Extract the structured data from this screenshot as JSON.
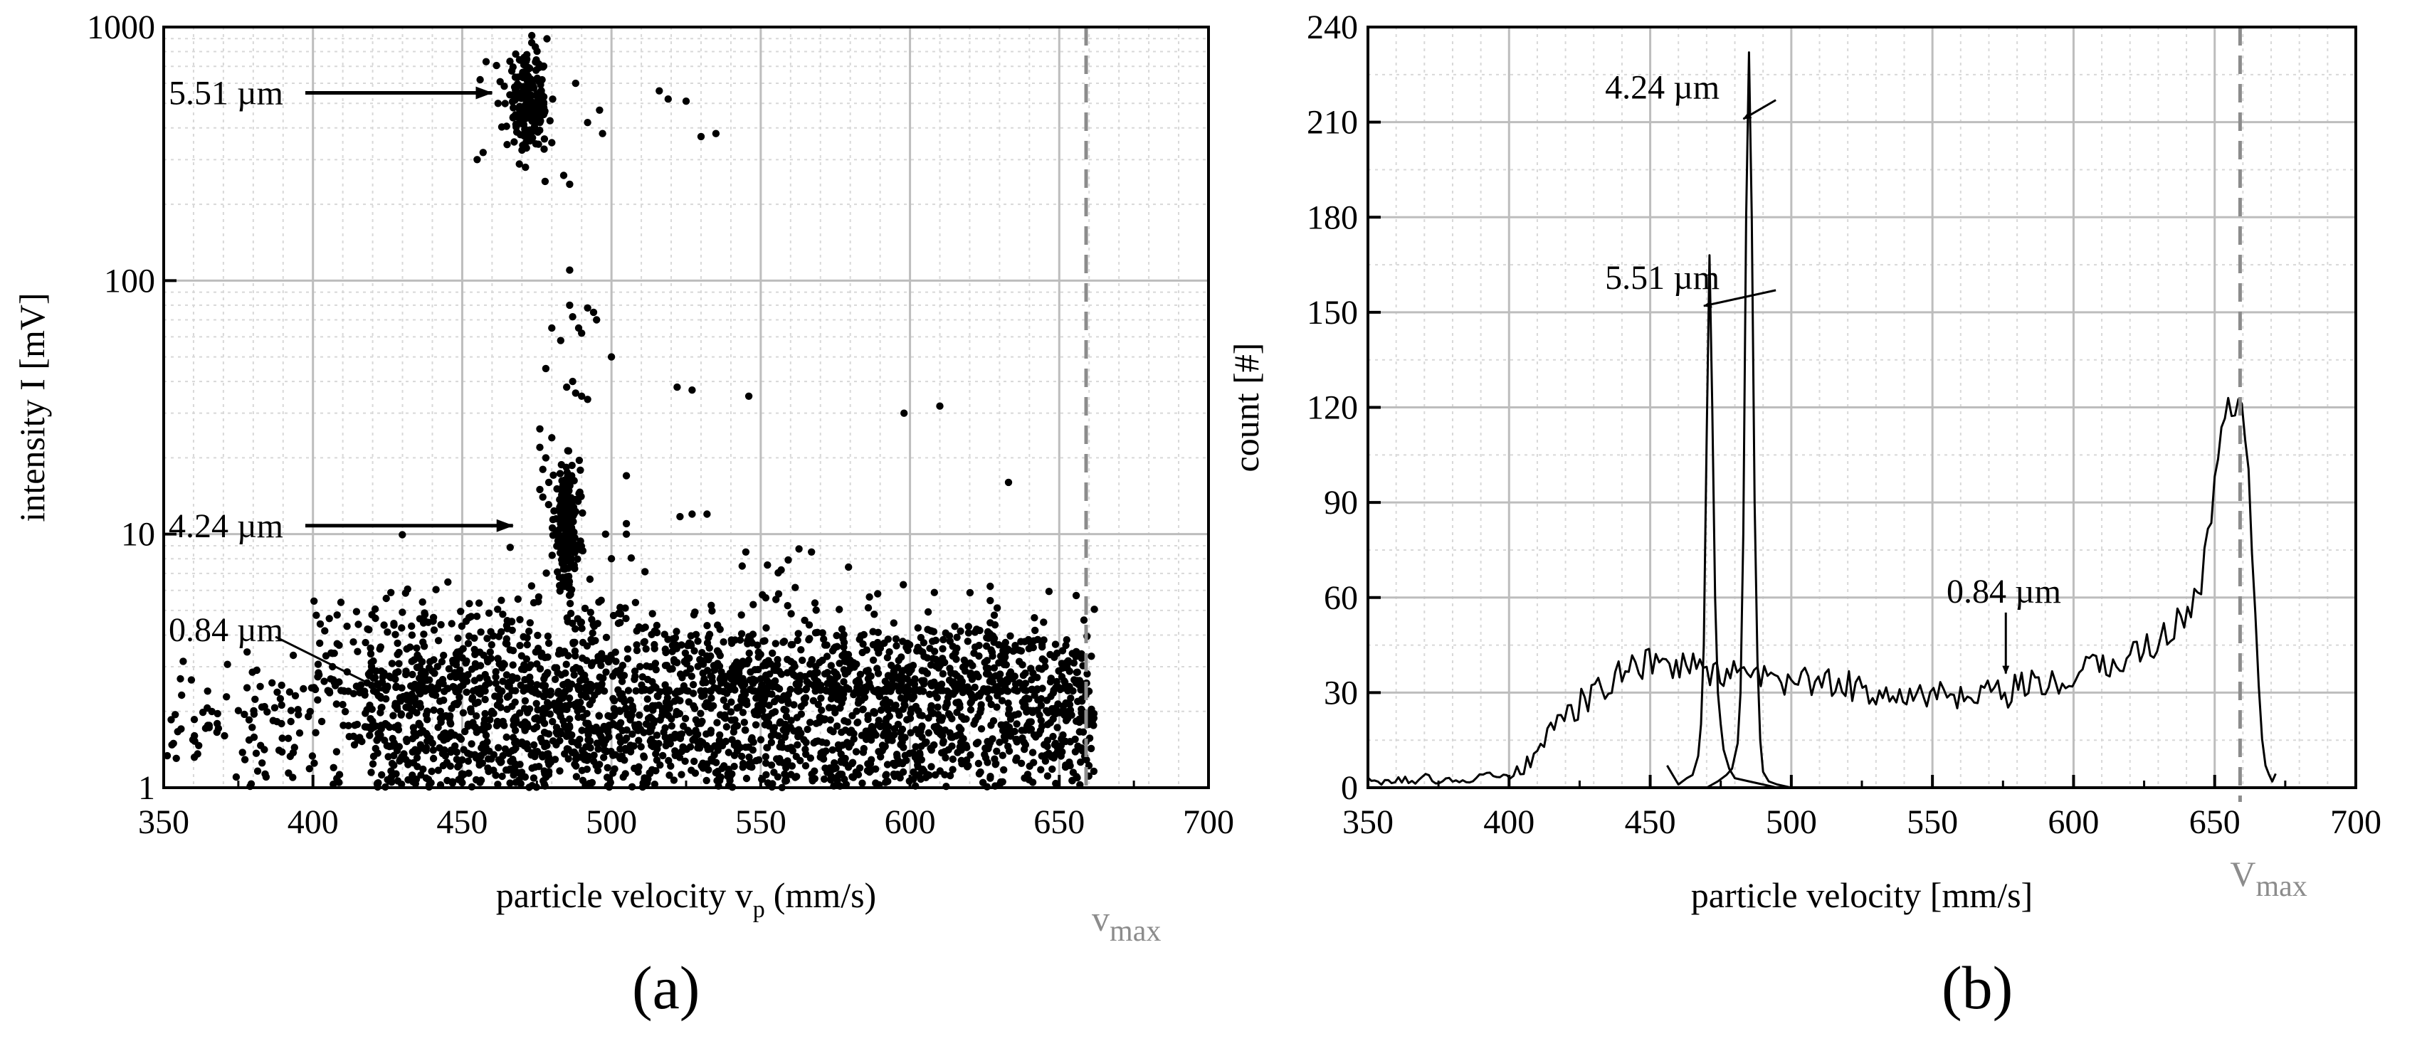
{
  "chart_data": [
    {
      "panel": "(a)",
      "type": "scatter",
      "xlabel": "particle velocity v",
      "xlabel_sub": "p",
      "xlabel_unit": "(mm/s)",
      "ylabel": "intensity I [mV]",
      "xlim": [
        350,
        700
      ],
      "ylim": [
        1,
        1000
      ],
      "yscale": "log",
      "xticks": [
        "350",
        "400",
        "450",
        "500",
        "550",
        "600",
        "650",
        "700"
      ],
      "yticks": [
        "1",
        "10",
        "100",
        "1000"
      ],
      "grid": true,
      "vmax": {
        "x": 659,
        "label": "v",
        "label_sub": "max",
        "color": "#8c8c8c"
      },
      "annotations": [
        {
          "text": "5.51 µm",
          "x": 350,
          "y": 550,
          "arrow_to": [
            460,
            550
          ]
        },
        {
          "text": "4.24 µm",
          "x": 350,
          "y": 10.8,
          "arrow_to": [
            467,
            10.8
          ]
        },
        {
          "text": "0.84 µm",
          "x": 350,
          "y": 4.2,
          "arrow_to": [
            424,
            2.4
          ]
        }
      ],
      "clusters": [
        {
          "name": "0.84 µm band",
          "x_range": [
            418,
            662
          ],
          "y_median": 1.75,
          "y_spread": 0.22,
          "n": 2600
        },
        {
          "name": "0.84 µm low tail",
          "x_range": [
            350,
            420
          ],
          "y_median": 1.75,
          "y_spread": 0.12,
          "n": 140
        },
        {
          "name": "outliers above band",
          "x_range": [
            400,
            660
          ],
          "y_median": 3.0,
          "y_spread": 0.35,
          "n": 520
        },
        {
          "name": "4.24 µm cluster",
          "x_center": 485,
          "x_spread": 2.2,
          "y_median": 10.5,
          "y_spread": 0.12,
          "n": 230
        },
        {
          "name": "5.51 µm cluster",
          "x_center": 472,
          "x_spread": 3.5,
          "y_median": 500,
          "y_spread": 0.09,
          "n": 200
        }
      ],
      "points": [
        [
          456,
          620
        ],
        [
          458,
          730
        ],
        [
          455,
          300
        ],
        [
          457,
          320
        ],
        [
          462,
          500
        ],
        [
          476,
          420
        ],
        [
          480,
          350
        ],
        [
          484,
          260
        ],
        [
          486,
          240
        ],
        [
          488,
          600
        ],
        [
          492,
          420
        ],
        [
          496,
          470
        ],
        [
          497,
          380
        ],
        [
          516,
          560
        ],
        [
          519,
          520
        ],
        [
          525,
          510
        ],
        [
          530,
          370
        ],
        [
          535,
          380
        ],
        [
          486,
          110
        ],
        [
          486,
          80
        ],
        [
          487,
          72
        ],
        [
          489,
          65
        ],
        [
          492,
          78
        ],
        [
          494,
          75
        ],
        [
          495,
          70
        ],
        [
          490,
          62
        ],
        [
          480,
          65
        ],
        [
          483,
          58
        ],
        [
          487,
          40
        ],
        [
          488,
          36
        ],
        [
          490,
          35
        ],
        [
          492,
          34
        ],
        [
          485,
          38
        ],
        [
          478,
          45
        ],
        [
          500,
          50
        ],
        [
          522,
          38
        ],
        [
          527,
          37
        ],
        [
          546,
          35
        ],
        [
          598,
          30
        ],
        [
          610,
          32
        ],
        [
          633,
          16
        ],
        [
          527,
          12
        ],
        [
          505,
          17
        ],
        [
          505,
          11
        ],
        [
          505,
          10
        ],
        [
          532,
          12
        ],
        [
          545,
          8.5
        ],
        [
          567,
          8.5
        ],
        [
          476,
          22
        ],
        [
          478,
          20
        ],
        [
          477,
          18
        ],
        [
          479,
          16
        ],
        [
          477,
          14
        ],
        [
          476,
          15
        ],
        [
          480,
          24
        ],
        [
          476,
          26
        ],
        [
          498,
          10
        ],
        [
          500,
          8
        ]
      ]
    },
    {
      "panel": "(b)",
      "type": "line",
      "xlabel": "particle velocity [mm/s]",
      "ylabel": "count [#]",
      "xlim": [
        350,
        700
      ],
      "ylim": [
        0,
        240
      ],
      "xticks": [
        "350",
        "400",
        "450",
        "500",
        "550",
        "600",
        "650",
        "700"
      ],
      "yticks": [
        "0",
        "30",
        "60",
        "90",
        "120",
        "150",
        "180",
        "210",
        "240"
      ],
      "grid": true,
      "vmax": {
        "x": 659,
        "label": "V",
        "label_sub": "max",
        "color": "#8c8c8c"
      },
      "annotations": [
        {
          "text": "4.24 µm",
          "x": 434,
          "y": 221,
          "arrow_to": [
            483,
            211
          ]
        },
        {
          "text": "5.51 µm",
          "x": 434,
          "y": 161,
          "arrow_to": [
            469,
            152
          ]
        },
        {
          "text": "0.84 µm",
          "x": 555,
          "y": 62,
          "arrow_to": [
            576,
            36
          ]
        }
      ],
      "series": [
        {
          "name": "0.84 µm",
          "x": [
            350,
            360,
            370,
            380,
            390,
            400,
            405,
            410,
            415,
            420,
            425,
            430,
            435,
            440,
            445,
            450,
            455,
            460,
            465,
            470,
            475,
            480,
            485,
            490,
            495,
            500,
            505,
            510,
            515,
            520,
            525,
            530,
            535,
            540,
            545,
            550,
            555,
            560,
            565,
            570,
            575,
            580,
            585,
            590,
            595,
            600,
            605,
            610,
            615,
            620,
            625,
            630,
            635,
            640,
            645,
            648,
            650,
            652,
            655,
            658,
            660,
            662,
            664,
            666,
            668,
            670,
            672
          ],
          "y": [
            2,
            2,
            3,
            2,
            3,
            4,
            6,
            12,
            16,
            22,
            26,
            30,
            33,
            36,
            38,
            39,
            40,
            39,
            38,
            37,
            36,
            35,
            35,
            34,
            33,
            33,
            34,
            33,
            32,
            32,
            31,
            31,
            31,
            30,
            29,
            29,
            28,
            28,
            27,
            29,
            29,
            31,
            32,
            32,
            33,
            35,
            37,
            38,
            40,
            42,
            44,
            46,
            50,
            56,
            64,
            82,
            95,
            110,
            120,
            123,
            115,
            100,
            60,
            25,
            6,
            3,
            3
          ],
          "jitter": 5
        },
        {
          "name": "5.51 µm",
          "x": [
            456,
            460,
            463,
            465,
            467,
            468,
            469,
            470,
            471,
            472,
            473,
            474,
            475,
            476,
            478,
            480,
            485,
            490,
            495,
            500,
            510
          ],
          "y": [
            7,
            1,
            3,
            4,
            10,
            20,
            45,
            110,
            168,
            120,
            60,
            30,
            20,
            12,
            6,
            3,
            2,
            1,
            0,
            0,
            0
          ]
        },
        {
          "name": "4.24 µm",
          "x": [
            465,
            470,
            474,
            477,
            479,
            480,
            481,
            482,
            483,
            484,
            485,
            486,
            487,
            488,
            489,
            490,
            492,
            495,
            500,
            510,
            520
          ],
          "y": [
            0,
            0,
            2,
            4,
            6,
            10,
            14,
            30,
            80,
            180,
            232,
            180,
            90,
            40,
            15,
            5,
            2,
            1,
            0,
            0,
            0
          ]
        }
      ]
    }
  ]
}
